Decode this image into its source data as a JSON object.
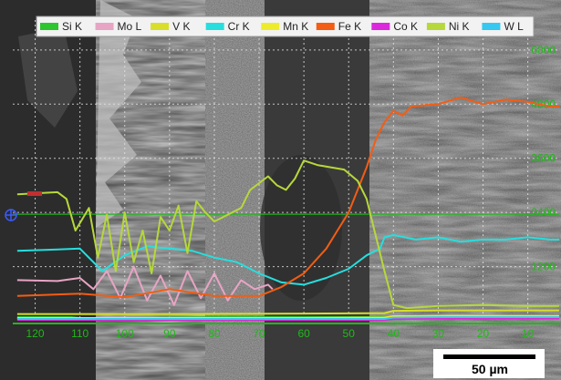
{
  "chart_data": {
    "type": "line",
    "title": "",
    "xlabel": "",
    "ylabel": "",
    "x_ticks": [
      120,
      110,
      100,
      90,
      80,
      70,
      60,
      50,
      40,
      30,
      20,
      10
    ],
    "xlim": [
      125,
      3
    ],
    "ylim": [
      0,
      6300
    ],
    "y_ticks": [
      1200,
      2400,
      3600,
      4800,
      6000
    ],
    "grid": true,
    "grid_color": "#e6e6e6",
    "axis_color": "#21b81a",
    "legend_position": "top",
    "scale_bar": {
      "label": "50 µm",
      "length_um": 50
    },
    "series": [
      {
        "name": "Si K",
        "color": "#2ec52e",
        "x": [
          124,
          112,
          108,
          100,
          90,
          80,
          70,
          60,
          50,
          42,
          40,
          30,
          20,
          10,
          3
        ],
        "y": [
          80,
          80,
          40,
          60,
          70,
          80,
          80,
          80,
          80,
          80,
          90,
          100,
          100,
          100,
          100
        ]
      },
      {
        "name": "Mo L",
        "color": "#e8a4c4",
        "x": [
          124,
          115,
          110,
          107,
          104,
          101,
          98,
          95,
          92,
          89,
          86,
          83,
          80,
          77,
          74,
          71,
          68,
          67
        ],
        "y": [
          900,
          880,
          950,
          700,
          1100,
          500,
          1200,
          450,
          1000,
          350,
          1100,
          500,
          1050,
          450,
          900,
          700,
          800,
          700
        ]
      },
      {
        "name": "V K",
        "color": "#d8de2a",
        "x": [
          124,
          90,
          60,
          42,
          40,
          30,
          20,
          10,
          3
        ],
        "y": [
          150,
          150,
          160,
          170,
          220,
          230,
          230,
          230,
          230
        ]
      },
      {
        "name": "Cr K",
        "color": "#27dede",
        "x": [
          124,
          115,
          110,
          105,
          100,
          95,
          90,
          85,
          80,
          75,
          70,
          65,
          60,
          55,
          50,
          46,
          43,
          42,
          40,
          35,
          30,
          25,
          20,
          15,
          10,
          5,
          3
        ],
        "y": [
          1550,
          1580,
          1600,
          1100,
          1450,
          1650,
          1600,
          1550,
          1400,
          1300,
          1050,
          850,
          800,
          950,
          1150,
          1450,
          1600,
          1850,
          1900,
          1800,
          1850,
          1750,
          1800,
          1800,
          1850,
          1800,
          1800
        ]
      },
      {
        "name": "Mn K",
        "color": "#ecec2c",
        "x": [
          124,
          90,
          60,
          42,
          40,
          30,
          20,
          10,
          3
        ],
        "y": [
          60,
          60,
          60,
          70,
          100,
          110,
          110,
          110,
          110
        ]
      },
      {
        "name": "Fe K",
        "color": "#f35d14",
        "x": [
          124,
          110,
          100,
          90,
          80,
          70,
          65,
          60,
          55,
          50,
          46,
          44,
          42,
          40,
          38,
          36,
          30,
          25,
          20,
          15,
          10,
          5,
          3
        ],
        "y": [
          550,
          600,
          520,
          700,
          550,
          550,
          750,
          1050,
          1600,
          2400,
          3400,
          4000,
          4400,
          4650,
          4550,
          4750,
          4800,
          4950,
          4800,
          4900,
          4850,
          4750,
          4750
        ]
      },
      {
        "name": "Co K",
        "color": "#dd27dd",
        "x": [
          124,
          90,
          60,
          42,
          40,
          30,
          20,
          10,
          3
        ],
        "y": [
          20,
          20,
          20,
          20,
          40,
          50,
          50,
          50,
          50
        ]
      },
      {
        "name": "Ni K",
        "color": "#b6d83a",
        "x": [
          124,
          115,
          113,
          111,
          108,
          106,
          104,
          102,
          100,
          98,
          96,
          94,
          92,
          90,
          88,
          86,
          84,
          82,
          80,
          78,
          76,
          74,
          72,
          70,
          68,
          66,
          64,
          62,
          60,
          57,
          54,
          51,
          48,
          46,
          44,
          42,
          40,
          37,
          30,
          20,
          10,
          3
        ],
        "y": [
          2800,
          2850,
          2700,
          2000,
          2500,
          1400,
          2350,
          1100,
          2400,
          1300,
          2000,
          1050,
          2300,
          2000,
          2550,
          1500,
          2650,
          2400,
          2200,
          2300,
          2400,
          2500,
          2900,
          3050,
          3200,
          3000,
          2900,
          3150,
          3550,
          3450,
          3400,
          3350,
          3100,
          2700,
          1900,
          1100,
          350,
          280,
          330,
          350,
          330,
          330
        ]
      },
      {
        "name": "W L",
        "color": "#36c8f0",
        "x": [
          124,
          90,
          60,
          42,
          40,
          30,
          20,
          10,
          3
        ],
        "y": [
          40,
          40,
          40,
          40,
          70,
          80,
          80,
          80,
          80
        ]
      }
    ]
  }
}
